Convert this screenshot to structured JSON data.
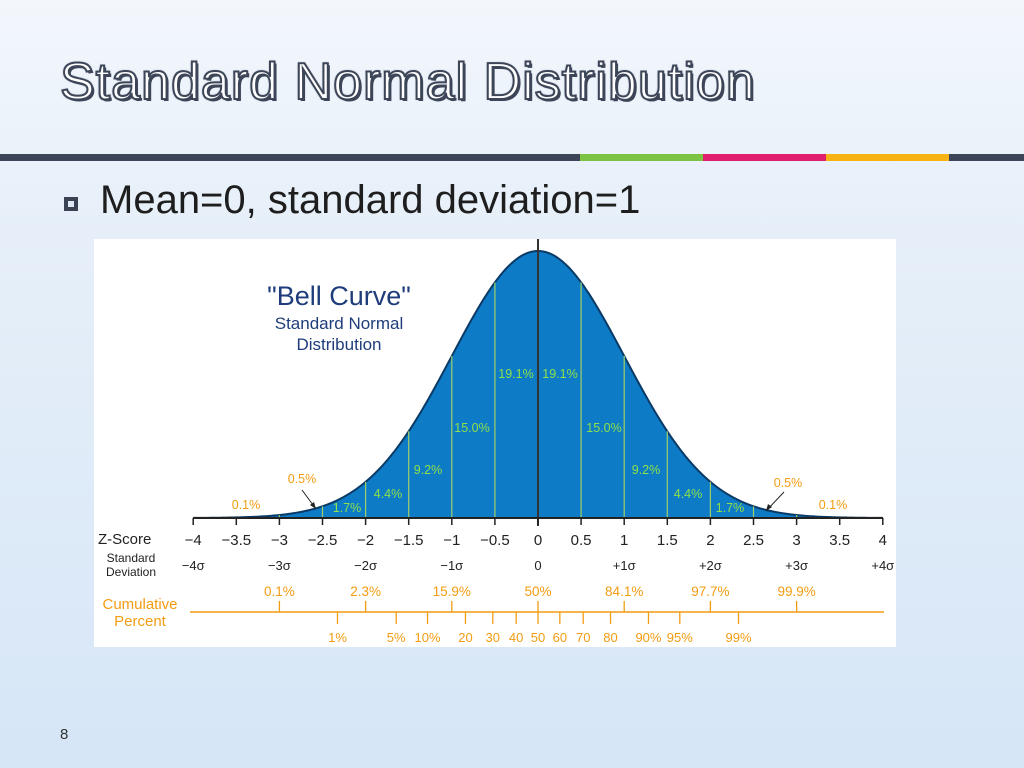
{
  "slide": {
    "title": "Standard Normal Distribution",
    "bullet": "Mean=0, standard deviation=1",
    "page_number": "8"
  },
  "colors": {
    "title_outline": "#3c4658",
    "bar_dark": "#3c4658",
    "bar_green": "#7cc243",
    "bar_pink": "#e0206e",
    "bar_yellow": "#f7b314",
    "curve_fill": "#0d7bc6",
    "curve_stroke": "#0a3a66",
    "green_label": "#8fe04a",
    "orange": "#f39c12",
    "axis": "#222222",
    "title_blue": "#1f3d7a"
  },
  "chart_data": {
    "type": "area",
    "title": "\"Bell Curve\"",
    "subtitle_line1": "Standard Normal",
    "subtitle_line2": "Distribution",
    "xlim": [
      -4,
      4
    ],
    "curve": "standard normal pdf",
    "row_labels": {
      "zscore": "Z-Score",
      "std_line1": "Standard",
      "std_line2": "Deviation",
      "cum_line1": "Cumulative",
      "cum_line2": "Percent"
    },
    "z_ticks": [
      {
        "z": -4,
        "label": "−4"
      },
      {
        "z": -3.5,
        "label": "−3.5"
      },
      {
        "z": -3,
        "label": "−3"
      },
      {
        "z": -2.5,
        "label": "−2.5"
      },
      {
        "z": -2,
        "label": "−2"
      },
      {
        "z": -1.5,
        "label": "−1.5"
      },
      {
        "z": -1,
        "label": "−1"
      },
      {
        "z": -0.5,
        "label": "−0.5"
      },
      {
        "z": 0,
        "label": "0"
      },
      {
        "z": 0.5,
        "label": "0.5"
      },
      {
        "z": 1,
        "label": "1"
      },
      {
        "z": 1.5,
        "label": "1.5"
      },
      {
        "z": 2,
        "label": "2"
      },
      {
        "z": 2.5,
        "label": "2.5"
      },
      {
        "z": 3,
        "label": "3"
      },
      {
        "z": 3.5,
        "label": "3.5"
      },
      {
        "z": 4,
        "label": "4"
      }
    ],
    "sd_labels": [
      {
        "z": -4,
        "label": "−4σ"
      },
      {
        "z": -3,
        "label": "−3σ"
      },
      {
        "z": -2,
        "label": "−2σ"
      },
      {
        "z": -1,
        "label": "−1σ"
      },
      {
        "z": 0,
        "label": "0"
      },
      {
        "z": 1,
        "label": "+1σ"
      },
      {
        "z": 2,
        "label": "+2σ"
      },
      {
        "z": 3,
        "label": "+3σ"
      },
      {
        "z": 4,
        "label": "+4σ"
      }
    ],
    "band_labels": [
      {
        "z": -3.25,
        "label": "0.1%"
      },
      {
        "z": -2.75,
        "label": "0.5%"
      },
      {
        "z": -2.25,
        "label": "1.7%"
      },
      {
        "z": -1.75,
        "label": "4.4%"
      },
      {
        "z": -1.25,
        "label": "9.2%"
      },
      {
        "z": -0.75,
        "label": "15.0%"
      },
      {
        "z": -0.25,
        "label": "19.1%"
      },
      {
        "z": 0.25,
        "label": "19.1%"
      },
      {
        "z": 0.75,
        "label": "15.0%"
      },
      {
        "z": 1.25,
        "label": "9.2%"
      },
      {
        "z": 1.75,
        "label": "4.4%"
      },
      {
        "z": 2.25,
        "label": "1.7%"
      },
      {
        "z": 2.75,
        "label": "0.5%"
      },
      {
        "z": 3.25,
        "label": "0.1%"
      }
    ],
    "cumulative_top": [
      {
        "z": -3,
        "label": "0.1%"
      },
      {
        "z": -2,
        "label": "2.3%"
      },
      {
        "z": -1,
        "label": "15.9%"
      },
      {
        "z": 0,
        "label": "50%"
      },
      {
        "z": 1,
        "label": "84.1%"
      },
      {
        "z": 2,
        "label": "97.7%"
      },
      {
        "z": 3,
        "label": "99.9%"
      }
    ],
    "cumulative_bottom": [
      {
        "z": -2.326,
        "label": "1%"
      },
      {
        "z": -1.645,
        "label": "5%"
      },
      {
        "z": -1.2816,
        "label": "10%"
      },
      {
        "z": -0.8416,
        "label": "20"
      },
      {
        "z": -0.5244,
        "label": "30"
      },
      {
        "z": -0.2533,
        "label": "40"
      },
      {
        "z": 0,
        "label": "50"
      },
      {
        "z": 0.2533,
        "label": "60"
      },
      {
        "z": 0.5244,
        "label": "70"
      },
      {
        "z": 0.8416,
        "label": "80"
      },
      {
        "z": 1.2816,
        "label": "90%"
      },
      {
        "z": 1.645,
        "label": "95%"
      },
      {
        "z": 2.326,
        "label": "99%"
      }
    ]
  }
}
